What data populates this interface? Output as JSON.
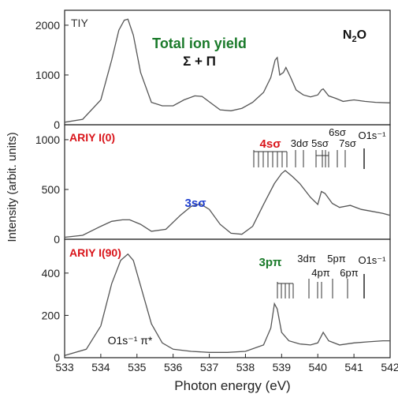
{
  "figure": {
    "ylabel": "Intensity (arbit. units)",
    "xlabel": "Photon energy (eV)",
    "molecule": "N₂O",
    "colors": {
      "curve": "#555555",
      "red": "#d9141a",
      "green": "#1a7a2a",
      "blue": "#1f3fcf",
      "black": "#111111",
      "frame": "#222222"
    }
  },
  "chart_data": [
    {
      "type": "line",
      "panel_label": "TIY",
      "title": "Total ion yield",
      "subtitle": "Σ + Π",
      "molecule": "N₂O",
      "xlim": [
        533,
        542
      ],
      "ylim": [
        0,
        2300
      ],
      "yticks": [
        0,
        1000,
        2000
      ],
      "series": [
        {
          "x": [
            533,
            533.5,
            534,
            534.3,
            534.5,
            534.65,
            534.75,
            534.9,
            535.1,
            535.4,
            535.7,
            536.0,
            536.3,
            536.6,
            536.8,
            537.0,
            537.3,
            537.6,
            537.9,
            538.2,
            538.5,
            538.7,
            538.82,
            538.88,
            538.95,
            539.05,
            539.12,
            539.25,
            539.4,
            539.6,
            539.8,
            540.0,
            540.1,
            540.15,
            540.3,
            540.5,
            540.7,
            541.0,
            541.3,
            541.6,
            542
          ],
          "y": [
            50,
            110,
            500,
            1300,
            1900,
            2100,
            2120,
            1800,
            1050,
            450,
            380,
            380,
            500,
            580,
            570,
            460,
            300,
            280,
            330,
            450,
            650,
            950,
            1300,
            1350,
            1000,
            1050,
            1150,
            950,
            700,
            600,
            560,
            600,
            700,
            720,
            580,
            530,
            470,
            500,
            470,
            450,
            440
          ]
        }
      ]
    },
    {
      "type": "line",
      "panel_label": "ARIY I(0)",
      "xlim": [
        533,
        542
      ],
      "ylim": [
        0,
        1150
      ],
      "yticks": [
        0,
        500,
        1000
      ],
      "annotations": [
        {
          "label": "3sσ",
          "color": "#1f3fcf"
        },
        {
          "label": "4sσ",
          "color": "#d9141a"
        },
        {
          "label": "3dσ",
          "color": "#111111"
        },
        {
          "label": "5sσ",
          "color": "#111111"
        },
        {
          "label": "6sσ",
          "color": "#111111"
        },
        {
          "label": "7sσ",
          "color": "#111111"
        },
        {
          "label": "O1s⁻¹",
          "color": "#111111"
        }
      ],
      "series": [
        {
          "x": [
            533,
            533.5,
            534,
            534.3,
            534.6,
            534.8,
            535.1,
            535.4,
            535.8,
            536.2,
            536.5,
            536.75,
            537.0,
            537.3,
            537.6,
            537.9,
            538.2,
            538.5,
            538.8,
            539.0,
            539.1,
            539.3,
            539.5,
            539.8,
            540.0,
            540.1,
            540.2,
            540.4,
            540.6,
            540.9,
            541.2,
            541.5,
            541.8,
            542
          ],
          "y": [
            20,
            40,
            130,
            180,
            195,
            195,
            150,
            80,
            100,
            240,
            330,
            355,
            300,
            150,
            60,
            50,
            130,
            350,
            560,
            660,
            690,
            630,
            560,
            420,
            350,
            480,
            460,
            360,
            320,
            340,
            300,
            280,
            260,
            240
          ]
        }
      ]
    },
    {
      "type": "line",
      "panel_label": "ARIY I(90)",
      "xlim": [
        533,
        542
      ],
      "ylim": [
        0,
        560
      ],
      "yticks": [
        0,
        200,
        400
      ],
      "annotations": [
        {
          "label": "O1s⁻¹ π*",
          "color": "#111111"
        },
        {
          "label": "3pπ",
          "color": "#1a7a2a"
        },
        {
          "label": "3dπ",
          "color": "#111111"
        },
        {
          "label": "4pπ",
          "color": "#111111"
        },
        {
          "label": "5pπ",
          "color": "#111111"
        },
        {
          "label": "6pπ",
          "color": "#111111"
        },
        {
          "label": "O1s⁻¹",
          "color": "#111111"
        }
      ],
      "series": [
        {
          "x": [
            533,
            533.6,
            534.0,
            534.3,
            534.55,
            534.75,
            534.9,
            535.1,
            535.4,
            535.7,
            536.0,
            536.5,
            537.0,
            537.5,
            538.0,
            538.5,
            538.7,
            538.8,
            538.88,
            539.0,
            539.2,
            539.5,
            539.8,
            540.0,
            540.15,
            540.3,
            540.6,
            541.0,
            541.4,
            541.8,
            542
          ],
          "y": [
            10,
            40,
            150,
            350,
            460,
            490,
            460,
            340,
            160,
            70,
            40,
            30,
            25,
            25,
            30,
            60,
            140,
            255,
            230,
            120,
            80,
            65,
            60,
            70,
            120,
            80,
            60,
            70,
            75,
            80,
            80
          ]
        }
      ]
    }
  ],
  "xaxis": {
    "ticks": [
      533,
      534,
      535,
      536,
      537,
      538,
      539,
      540,
      541,
      542
    ]
  }
}
